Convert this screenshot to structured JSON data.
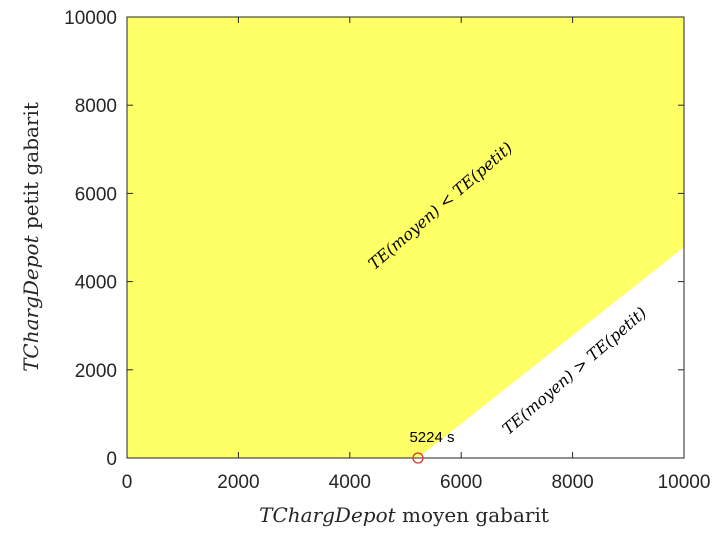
{
  "chart_data": {
    "type": "area",
    "xlabel_math": "TChargDepot",
    "xlabel_text": " moyen gabarit",
    "ylabel_math": "TChargDepot",
    "ylabel_text": " petit gabarit",
    "xlim": [
      0,
      10000
    ],
    "ylim": [
      0,
      10000
    ],
    "xticks": [
      0,
      2000,
      4000,
      6000,
      8000,
      10000
    ],
    "yticks": [
      0,
      2000,
      4000,
      6000,
      8000,
      10000
    ],
    "xtick_labels": [
      "0",
      "2000",
      "4000",
      "6000",
      "8000",
      "10000"
    ],
    "ytick_labels": [
      "0",
      "2000",
      "4000",
      "6000",
      "8000",
      "10000"
    ],
    "grid": false,
    "region_boundary": [
      {
        "x": 5224,
        "y": 0
      },
      {
        "x": 10000,
        "y": 4780
      }
    ],
    "regions": [
      {
        "label": "TE(moyen) < TE(petit)",
        "color": "#ffff66"
      },
      {
        "label": "TE(moyen) > TE(petit)",
        "color": "#ffffff"
      }
    ],
    "marker": {
      "x": 5224,
      "y": 0,
      "label": "5224 s",
      "color": "#e03030"
    }
  }
}
